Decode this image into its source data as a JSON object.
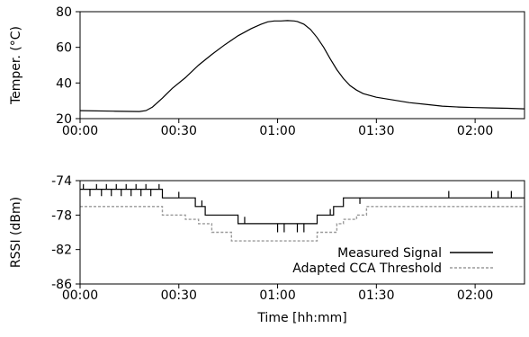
{
  "chart_data": [
    {
      "type": "line",
      "title": "",
      "xlabel": "",
      "ylabel": "Temper. (°C)",
      "xlim": [
        0,
        135
      ],
      "ylim": [
        20,
        80
      ],
      "xticks": [
        0,
        30,
        60,
        90,
        120
      ],
      "xtick_labels": [
        "00:00",
        "00:30",
        "01:00",
        "01:30",
        "02:00"
      ],
      "yticks": [
        20,
        40,
        60,
        80
      ],
      "ytick_labels": [
        "20",
        "40",
        "60",
        "80"
      ],
      "grid": false,
      "legend": null,
      "series": [
        {
          "color": "#000000",
          "x": [
            0,
            10,
            18,
            20,
            22,
            25,
            28,
            32,
            36,
            40,
            44,
            48,
            52,
            55,
            57,
            59,
            61,
            63,
            65,
            66,
            68,
            70,
            72,
            74,
            76,
            78,
            80,
            82,
            84,
            86,
            90,
            95,
            100,
            105,
            110,
            115,
            120,
            125,
            130,
            135
          ],
          "y": [
            24.5,
            24.2,
            24.0,
            24.5,
            26.5,
            31.5,
            37.0,
            43.0,
            50.0,
            56.0,
            61.5,
            66.5,
            70.5,
            73.0,
            74.3,
            74.8,
            74.8,
            75.0,
            74.8,
            74.5,
            73.0,
            70.0,
            65.5,
            60.0,
            53.5,
            47.5,
            42.5,
            38.5,
            36.0,
            34.0,
            32.0,
            30.5,
            29.0,
            28.0,
            27.0,
            26.5,
            26.2,
            26.0,
            25.8,
            25.5
          ]
        }
      ]
    },
    {
      "type": "line",
      "title": "",
      "xlabel": "Time [hh:mm]",
      "ylabel": "RSSI (dBm)",
      "xlim": [
        0,
        135
      ],
      "ylim": [
        -86,
        -74
      ],
      "xticks": [
        0,
        30,
        60,
        90,
        120
      ],
      "xtick_labels": [
        "00:00",
        "00:30",
        "01:00",
        "01:30",
        "02:00"
      ],
      "yticks": [
        -74,
        -78,
        -82,
        -86
      ],
      "ytick_labels": [
        "-74",
        "-78",
        "-82",
        "-86"
      ],
      "grid": false,
      "legend": "bottom-right",
      "series": [
        {
          "name": "Measured Signal",
          "color": "#000000",
          "dash": "",
          "x": [
            0,
            25,
            25,
            35,
            35,
            38,
            38,
            48,
            48,
            51,
            51,
            72,
            72,
            77,
            77,
            80,
            80,
            86,
            86,
            135
          ],
          "y": [
            -75,
            -75,
            -76,
            -76,
            -77,
            -77,
            -78,
            -78,
            -79,
            -79,
            -79,
            -79,
            -78,
            -78,
            -77,
            -77,
            -76,
            -76,
            -76,
            -76
          ],
          "spikes": [
            {
              "x": 1,
              "y1": -75,
              "y2": -74.4
            },
            {
              "x": 3,
              "y1": -75,
              "y2": -75.8
            },
            {
              "x": 5,
              "y1": -75,
              "y2": -74.4
            },
            {
              "x": 6.5,
              "y1": -75,
              "y2": -75.8
            },
            {
              "x": 8,
              "y1": -75,
              "y2": -74.4
            },
            {
              "x": 9.5,
              "y1": -75,
              "y2": -75.8
            },
            {
              "x": 11,
              "y1": -75,
              "y2": -74.4
            },
            {
              "x": 12.5,
              "y1": -75,
              "y2": -75.8
            },
            {
              "x": 14,
              "y1": -75,
              "y2": -74.4
            },
            {
              "x": 15.5,
              "y1": -75,
              "y2": -75.8
            },
            {
              "x": 17,
              "y1": -75,
              "y2": -74.4
            },
            {
              "x": 18.5,
              "y1": -75,
              "y2": -75.8
            },
            {
              "x": 20,
              "y1": -75,
              "y2": -74.4
            },
            {
              "x": 21.5,
              "y1": -75,
              "y2": -75.8
            },
            {
              "x": 24,
              "y1": -75,
              "y2": -74.4
            },
            {
              "x": 30,
              "y1": -76,
              "y2": -75.3
            },
            {
              "x": 37,
              "y1": -77,
              "y2": -76.3
            },
            {
              "x": 50,
              "y1": -79,
              "y2": -78.2
            },
            {
              "x": 60,
              "y1": -79,
              "y2": -80.0
            },
            {
              "x": 62,
              "y1": -79,
              "y2": -80.0
            },
            {
              "x": 66,
              "y1": -79,
              "y2": -80.0
            },
            {
              "x": 68,
              "y1": -79,
              "y2": -80.0
            },
            {
              "x": 76,
              "y1": -78,
              "y2": -77.3
            },
            {
              "x": 85,
              "y1": -76,
              "y2": -76.7
            },
            {
              "x": 112,
              "y1": -76,
              "y2": -75.2
            },
            {
              "x": 125,
              "y1": -76,
              "y2": -75.2
            },
            {
              "x": 127,
              "y1": -76,
              "y2": -75.2
            },
            {
              "x": 131,
              "y1": -76,
              "y2": -75.2
            }
          ]
        },
        {
          "name": "Adapted CCA Threshold",
          "color": "#9a9a9a",
          "dash": "3,2",
          "x": [
            0,
            25,
            25,
            32,
            32,
            36,
            36,
            40,
            40,
            46,
            46,
            54,
            54,
            72,
            72,
            78,
            78,
            80,
            80,
            84,
            84,
            87,
            87,
            108,
            108,
            135
          ],
          "y": [
            -77,
            -77,
            -78,
            -78,
            -78.5,
            -78.5,
            -79,
            -79,
            -80,
            -80,
            -81,
            -81,
            -81,
            -81,
            -80,
            -80,
            -79,
            -79,
            -78.5,
            -78.5,
            -78,
            -78,
            -77,
            -77,
            -77,
            -77
          ]
        }
      ]
    }
  ]
}
